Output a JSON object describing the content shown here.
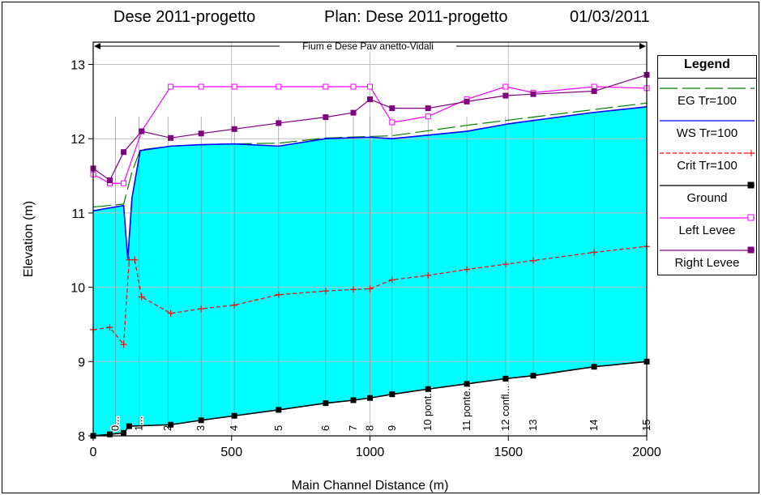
{
  "header": {
    "title_left": "Dese 2011-progetto",
    "title_plan": "Plan: Dese 2011-progetto",
    "title_date": "01/03/2011"
  },
  "colors": {
    "ws_fill": "#00ffff",
    "eg": "#008000",
    "ws": "#0000ff",
    "crit": "#ff0000",
    "ground": "#000000",
    "left_levee": "#ff00ff",
    "right_levee": "#800080",
    "grid": "#c0c0c0"
  },
  "chart_data": {
    "type": "line",
    "title": "Dese 2011-progetto",
    "reach_label": "Fium e Dese Pav anetto-Vidali",
    "xlabel": "Main Channel Distance (m)",
    "ylabel": "Elevation (m)",
    "xlim": [
      0,
      2000
    ],
    "ylim": [
      8,
      13.3
    ],
    "xticks": [
      0,
      500,
      1000,
      1500,
      2000
    ],
    "yticks": [
      8,
      9,
      10,
      11,
      12,
      13
    ],
    "grid": true,
    "legend_title": "Legend",
    "legend_position": "right",
    "series": [
      {
        "name": "EG Tr=100",
        "style": "dash",
        "color": "#008000",
        "x": [
          0,
          110,
          140,
          170,
          280,
          390,
          510,
          670,
          840,
          1000,
          1080,
          1350,
          1500,
          2000
        ],
        "y": [
          11.08,
          11.12,
          11.55,
          11.85,
          11.9,
          11.92,
          11.93,
          11.94,
          12.01,
          12.03,
          12.04,
          12.18,
          12.25,
          12.48
        ]
      },
      {
        "name": "WS Tr=100",
        "style": "solid",
        "color": "#0000ff",
        "x": [
          0,
          110,
          125,
          140,
          170,
          280,
          390,
          510,
          670,
          840,
          1000,
          1080,
          1350,
          1500,
          1800,
          2000
        ],
        "y": [
          11.03,
          11.1,
          10.38,
          11.2,
          11.84,
          11.9,
          11.92,
          11.93,
          11.9,
          12.0,
          12.02,
          12.0,
          12.1,
          12.2,
          12.35,
          12.43
        ]
      },
      {
        "name": "Crit Tr=100",
        "style": "dash",
        "color": "#ff0000",
        "marker": "plus",
        "x": [
          0,
          60,
          110,
          130,
          150,
          175,
          280,
          390,
          510,
          670,
          840,
          940,
          1000,
          1080,
          1210,
          1350,
          1490,
          1590,
          1810,
          2000
        ],
        "y": [
          9.43,
          9.46,
          9.23,
          10.37,
          10.37,
          9.87,
          9.65,
          9.71,
          9.76,
          9.9,
          9.95,
          9.97,
          9.98,
          10.1,
          10.16,
          10.24,
          10.31,
          10.36,
          10.47,
          10.55
        ]
      },
      {
        "name": "Ground",
        "style": "solid",
        "color": "#000000",
        "marker": "square",
        "x": [
          0,
          60,
          110,
          130,
          280,
          390,
          510,
          670,
          840,
          940,
          1000,
          1080,
          1210,
          1350,
          1490,
          1590,
          1810,
          2000
        ],
        "y": [
          8.0,
          8.02,
          8.04,
          8.13,
          8.15,
          8.21,
          8.27,
          8.35,
          8.44,
          8.48,
          8.51,
          8.56,
          8.63,
          8.7,
          8.77,
          8.81,
          8.93,
          9.0
        ]
      },
      {
        "name": "Left Levee",
        "style": "solid",
        "color": "#ff00ff",
        "marker": "square-open",
        "x": [
          0,
          60,
          110,
          175,
          280,
          390,
          510,
          670,
          840,
          940,
          1000,
          1080,
          1210,
          1350,
          1490,
          1590,
          1810,
          2000
        ],
        "y": [
          11.52,
          11.4,
          11.4,
          12.1,
          12.7,
          12.7,
          12.7,
          12.7,
          12.7,
          12.7,
          12.7,
          12.22,
          12.3,
          12.53,
          12.7,
          12.62,
          12.7,
          12.68
        ]
      },
      {
        "name": "Right Levee",
        "style": "solid",
        "color": "#800080",
        "marker": "square",
        "x": [
          0,
          60,
          110,
          175,
          280,
          390,
          510,
          670,
          840,
          940,
          1000,
          1080,
          1210,
          1350,
          1490,
          1590,
          1810,
          2000
        ],
        "y": [
          11.6,
          11.44,
          11.82,
          12.1,
          12.01,
          12.07,
          12.13,
          12.21,
          12.29,
          12.35,
          12.53,
          12.41,
          12.41,
          12.5,
          12.58,
          12.6,
          12.64,
          12.86
        ]
      }
    ],
    "stations": [
      {
        "x": 80,
        "label": "0..."
      },
      {
        "x": 165,
        "label": "1..."
      },
      {
        "x": 270,
        "label": "2"
      },
      {
        "x": 390,
        "label": "3"
      },
      {
        "x": 510,
        "label": "4"
      },
      {
        "x": 670,
        "label": "5"
      },
      {
        "x": 840,
        "label": "6"
      },
      {
        "x": 940,
        "label": "7"
      },
      {
        "x": 1000,
        "label": "8"
      },
      {
        "x": 1080,
        "label": "9"
      },
      {
        "x": 1210,
        "label": "10 pont..."
      },
      {
        "x": 1350,
        "label": "11 ponte..."
      },
      {
        "x": 1490,
        "label": "12 confl..."
      },
      {
        "x": 1590,
        "label": "13"
      },
      {
        "x": 1810,
        "label": "14"
      },
      {
        "x": 2000,
        "label": "15"
      }
    ]
  }
}
